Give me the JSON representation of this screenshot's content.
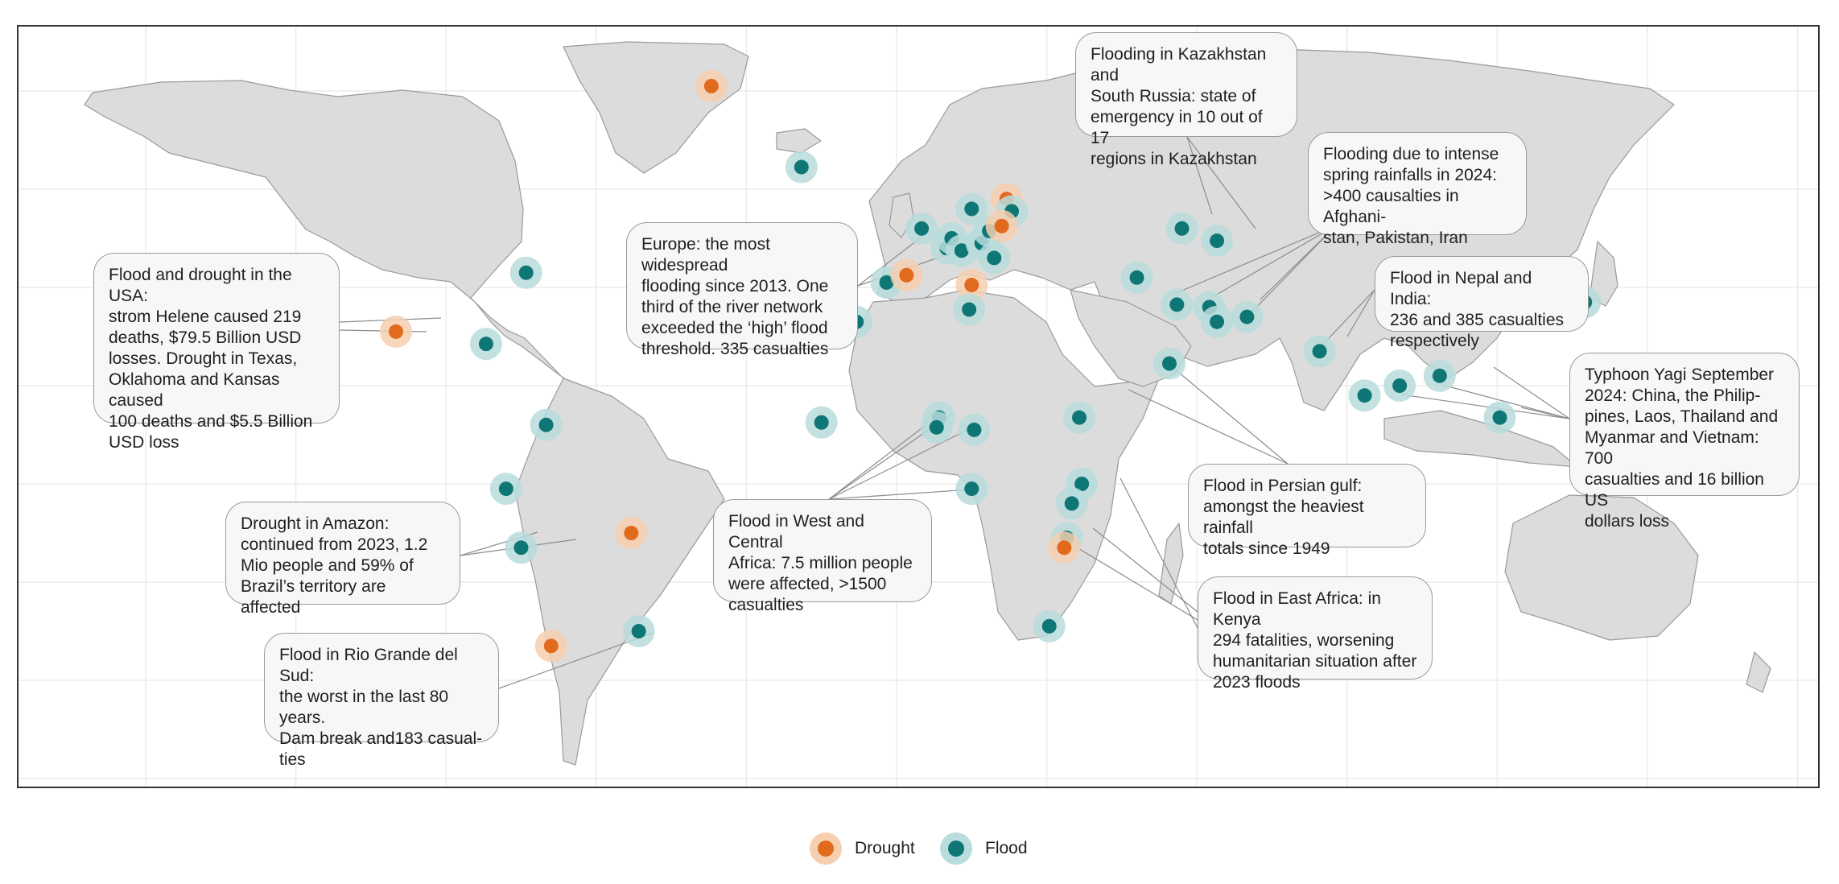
{
  "colors": {
    "ocean": "#ffffff",
    "land": "#dcdcdc",
    "border": "#9a9a9a",
    "graticule": "#ececec",
    "drought": "#e26a1c",
    "drought_halo": "#f6cfb0",
    "flood": "#0f7676",
    "flood_halo": "#b9dcdc"
  },
  "legend": {
    "drought": "Drought",
    "flood": "Flood"
  },
  "callouts": [
    {
      "id": "kazakhstan",
      "text": "Flooding in Kazakhstan and\nSouth Russia: state of\nemergency in 10 out of 17\nregions in Kazakhstan"
    },
    {
      "id": "afghanistan",
      "text": "Flooding due to intense\nspring rainfalls in 2024:\n>400 causalties in Afghani-\nstan, Pakistan, Iran"
    },
    {
      "id": "europe",
      "text": "Europe: the most widespread\nflooding since 2013. One\nthird of the river network\nexceeded the ‘high’ flood\nthreshold. 335 casualties"
    },
    {
      "id": "usa",
      "text": "Flood and drought in the USA:\nstrom Helene caused 219\ndeaths, $79.5 Billion USD\nlosses. Drought in Texas,\nOklahoma and Kansas caused\n100 deaths and $5.5 Billion\nUSD loss"
    },
    {
      "id": "nepal",
      "text": "Flood in Nepal and India:\n236 and 385 casualties\nrespectively"
    },
    {
      "id": "yagi",
      "text": "Typhoon Yagi September\n2024: China, the Philip-\npines, Laos, Thailand and\nMyanmar and Vietnam: 700\ncasualties and 16 billion US\ndollars loss"
    },
    {
      "id": "persian",
      "text": "Flood in Persian gulf:\namongst the heaviest rainfall\ntotals since 1949"
    },
    {
      "id": "amazon",
      "text": "Drought in Amazon:\ncontinued from 2023, 1.2\nMio people and 59% of\nBrazil’s territory are affected"
    },
    {
      "id": "westafrica",
      "text": "Flood in West and Central\nAfrica: 7.5 million people\nwere affected, >1500\ncasualties"
    },
    {
      "id": "eastafrica",
      "text": "Flood in East Africa: in Kenya\n294 fatalities, worsening\nhumanitarian situation after\n2023 floods"
    },
    {
      "id": "riogrande",
      "text": "Flood in Rio Grande del Sud:\nthe worst in the last 80 years.\nDam break and183 casual-\nties"
    }
  ],
  "markers": [
    {
      "type": "drought",
      "lon": -37,
      "lat": 81
    },
    {
      "type": "flood",
      "lon": -19,
      "lat": 64.5
    },
    {
      "type": "flood",
      "lon": -74,
      "lat": 43
    },
    {
      "type": "flood",
      "lon": -82,
      "lat": 28.5
    },
    {
      "type": "drought",
      "lon": -100,
      "lat": 31
    },
    {
      "type": "flood",
      "lon": -70,
      "lat": 12
    },
    {
      "type": "flood",
      "lon": -78,
      "lat": -1
    },
    {
      "type": "flood",
      "lon": -75,
      "lat": -13
    },
    {
      "type": "drought",
      "lon": -53,
      "lat": -10
    },
    {
      "type": "flood",
      "lon": -51.5,
      "lat": -30
    },
    {
      "type": "drought",
      "lon": -69,
      "lat": -33
    },
    {
      "type": "flood",
      "lon": -15,
      "lat": 12.5
    },
    {
      "type": "flood",
      "lon": -8,
      "lat": 33
    },
    {
      "type": "flood",
      "lon": -2,
      "lat": 41
    },
    {
      "type": "drought",
      "lon": 2,
      "lat": 42.5
    },
    {
      "type": "flood",
      "lon": 5,
      "lat": 52
    },
    {
      "type": "flood",
      "lon": 10,
      "lat": 48
    },
    {
      "type": "flood",
      "lon": 11,
      "lat": 50
    },
    {
      "type": "flood",
      "lon": 13,
      "lat": 47.5
    },
    {
      "type": "flood",
      "lon": 15,
      "lat": 56
    },
    {
      "type": "flood",
      "lon": 17,
      "lat": 49
    },
    {
      "type": "flood",
      "lon": 18.5,
      "lat": 51.5
    },
    {
      "type": "flood",
      "lon": 19.5,
      "lat": 46
    },
    {
      "type": "drought",
      "lon": 22,
      "lat": 58
    },
    {
      "type": "flood",
      "lon": 23,
      "lat": 55.5
    },
    {
      "type": "drought",
      "lon": 21,
      "lat": 52.5
    },
    {
      "type": "drought",
      "lon": 15,
      "lat": 40.5
    },
    {
      "type": "flood",
      "lon": 14.5,
      "lat": 35.5
    },
    {
      "type": "flood",
      "lon": 8.5,
      "lat": 13.5
    },
    {
      "type": "flood",
      "lon": 8,
      "lat": 11.5
    },
    {
      "type": "flood",
      "lon": 15.5,
      "lat": 11
    },
    {
      "type": "flood",
      "lon": 15,
      "lat": -1
    },
    {
      "type": "flood",
      "lon": 36.5,
      "lat": 13.5
    },
    {
      "type": "flood",
      "lon": 37,
      "lat": 0
    },
    {
      "type": "flood",
      "lon": 35,
      "lat": -4
    },
    {
      "type": "flood",
      "lon": 34,
      "lat": -11
    },
    {
      "type": "drought",
      "lon": 33.5,
      "lat": -13
    },
    {
      "type": "flood",
      "lon": 30.5,
      "lat": -29
    },
    {
      "type": "flood",
      "lon": 48,
      "lat": 42
    },
    {
      "type": "flood",
      "lon": 57,
      "lat": 52
    },
    {
      "type": "flood",
      "lon": 64,
      "lat": 49.5
    },
    {
      "type": "flood",
      "lon": 56,
      "lat": 36.5
    },
    {
      "type": "flood",
      "lon": 62.5,
      "lat": 36
    },
    {
      "type": "flood",
      "lon": 64,
      "lat": 33
    },
    {
      "type": "flood",
      "lon": 70,
      "lat": 34
    },
    {
      "type": "flood",
      "lon": 54.5,
      "lat": 24.5
    },
    {
      "type": "flood",
      "lon": 84.5,
      "lat": 27
    },
    {
      "type": "flood",
      "lon": 93.5,
      "lat": 18
    },
    {
      "type": "flood",
      "lon": 100.5,
      "lat": 20
    },
    {
      "type": "flood",
      "lon": 108.5,
      "lat": 22
    },
    {
      "type": "flood",
      "lon": 120.5,
      "lat": 13.5
    },
    {
      "type": "flood",
      "lon": 137.5,
      "lat": 37
    }
  ]
}
